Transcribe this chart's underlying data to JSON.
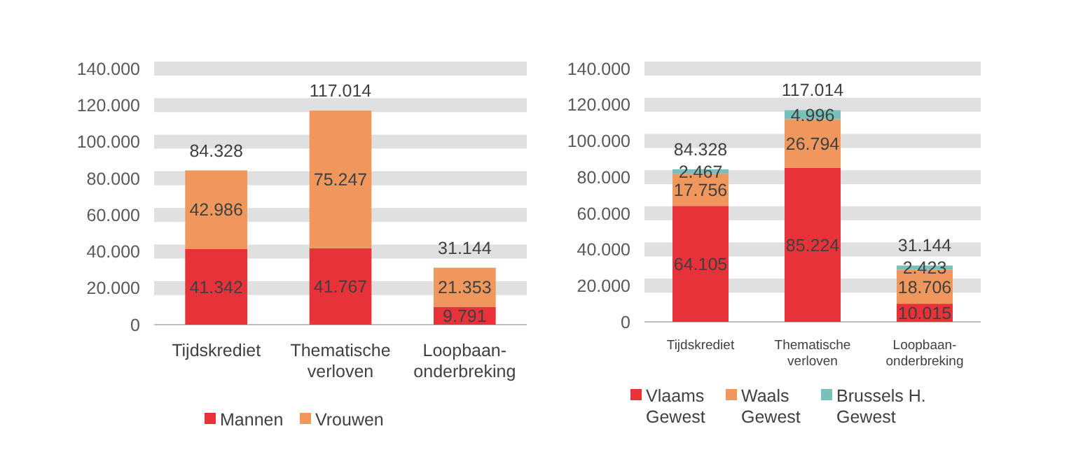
{
  "chart_data": [
    {
      "type": "bar",
      "stacked": true,
      "categories": [
        "Tijdskrediet",
        "Thematische verloven",
        "Loopbaan-onderbreking"
      ],
      "series": [
        {
          "name": "Mannen",
          "color": "#e8323a",
          "values": [
            41342,
            41767,
            9791
          ],
          "value_labels": [
            "41.342",
            "41.767",
            "9.791"
          ]
        },
        {
          "name": "Vrouwen",
          "color": "#f0975e",
          "values": [
            42986,
            75247,
            21353
          ],
          "value_labels": [
            "42.986",
            "75.247",
            "21.353"
          ]
        }
      ],
      "ylim": [
        0,
        140000
      ],
      "yticks": [
        {
          "value": 0,
          "label": "0"
        },
        {
          "value": 20000,
          "label": "20.000"
        },
        {
          "value": 40000,
          "label": "40.000"
        },
        {
          "value": 60000,
          "label": "60.000"
        },
        {
          "value": 80000,
          "label": "80.000"
        },
        {
          "value": 100000,
          "label": "100.000"
        },
        {
          "value": 120000,
          "label": "120.000"
        },
        {
          "value": 140000,
          "label": "140.000"
        }
      ],
      "grid": "y",
      "legend": "bottom",
      "totals": [
        "84.328",
        "117.014",
        "31.144"
      ]
    },
    {
      "type": "bar",
      "stacked": true,
      "categories": [
        "Tijdskrediet",
        "Thematische verloven",
        "Loopbaan-onderbreking"
      ],
      "series": [
        {
          "name": "Vlaams Gewest",
          "color": "#e8323a",
          "values": [
            64105,
            85224,
            10015
          ],
          "value_labels": [
            "64.105",
            "85.224",
            "10.015"
          ]
        },
        {
          "name": "Waals Gewest",
          "color": "#f0975e",
          "values": [
            17756,
            26794,
            18706
          ],
          "value_labels": [
            "17.756",
            "26.794",
            "18.706"
          ]
        },
        {
          "name": "Brussels H. Gewest",
          "color": "#77c0bb",
          "values": [
            2467,
            4996,
            2423
          ],
          "value_labels": [
            "2.467",
            "4.996",
            "2.423"
          ]
        }
      ],
      "ylim": [
        0,
        140000
      ],
      "yticks": [
        {
          "value": 0,
          "label": "0"
        },
        {
          "value": 20000,
          "label": "20.000"
        },
        {
          "value": 40000,
          "label": "40.000"
        },
        {
          "value": 60000,
          "label": "60.000"
        },
        {
          "value": 80000,
          "label": "80.000"
        },
        {
          "value": 100000,
          "label": "100.000"
        },
        {
          "value": 120000,
          "label": "120.000"
        },
        {
          "value": 140000,
          "label": "140.000"
        }
      ],
      "grid": "y",
      "legend": "bottom",
      "totals": [
        "84.328",
        "117.014",
        "31.144"
      ]
    }
  ]
}
